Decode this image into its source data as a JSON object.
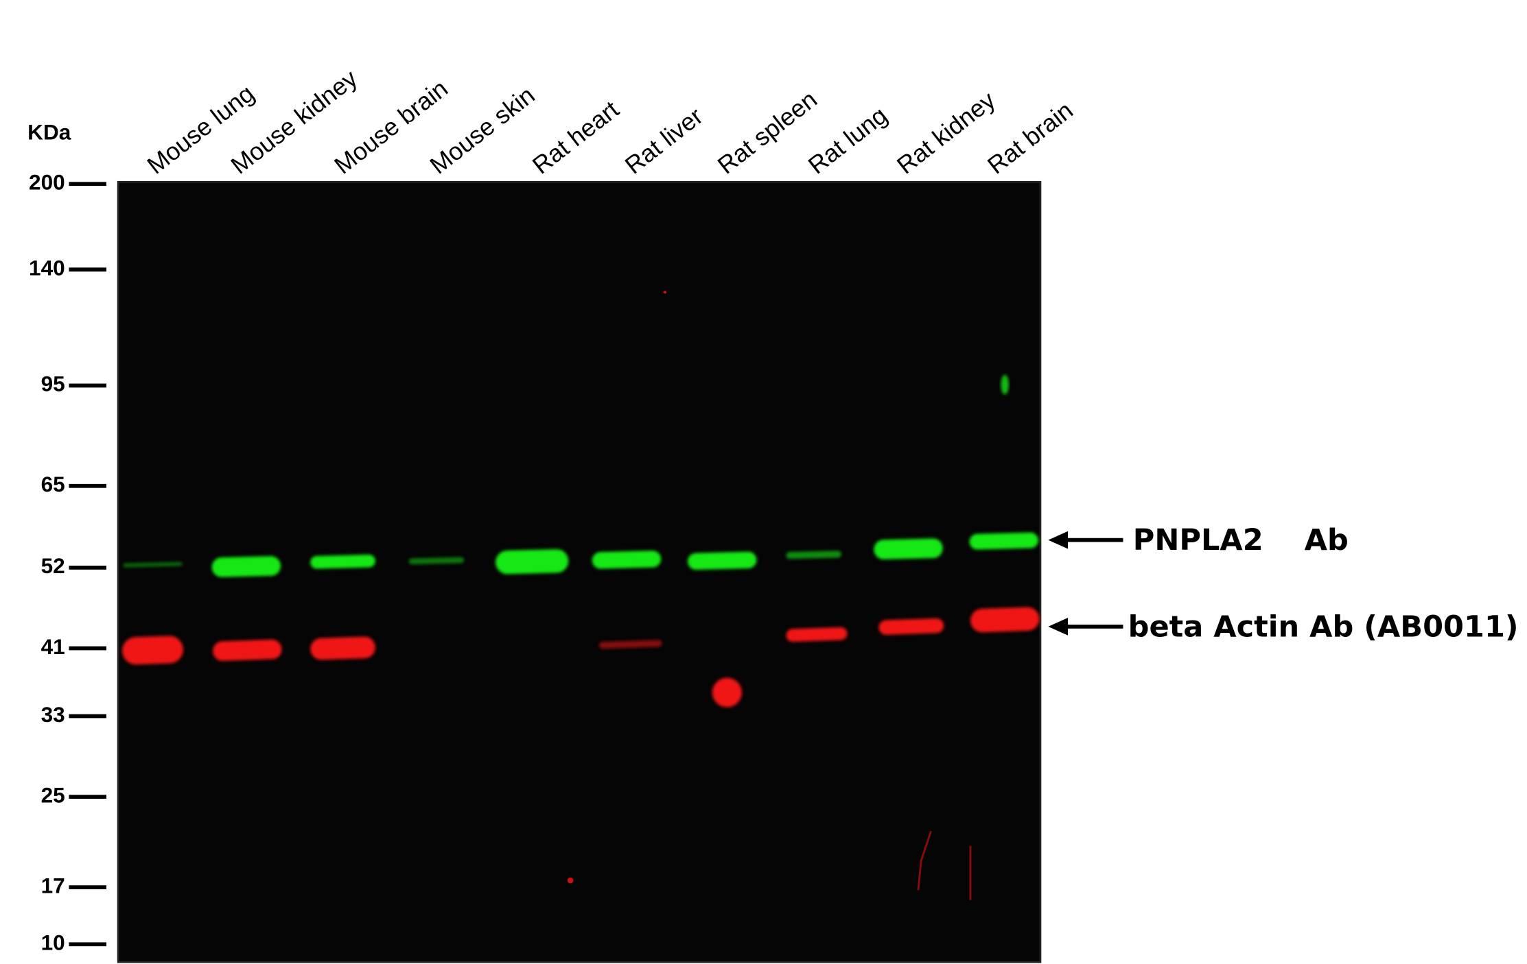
{
  "header": {
    "unit": "KDa"
  },
  "markers": [
    "200",
    "140",
    "95",
    "65",
    "52",
    "41",
    "33",
    "25",
    "17",
    "10"
  ],
  "lanes": [
    "Mouse lung",
    "Mouse kidney",
    "Mouse brain",
    "Mouse skin",
    "Rat heart",
    "Rat liver",
    "Rat spleen",
    "Rat lung",
    "Rat kidney",
    "Rat brain"
  ],
  "annotations": [
    "PNPLA2    Ab",
    "beta Actin Ab (AB0011)"
  ]
}
